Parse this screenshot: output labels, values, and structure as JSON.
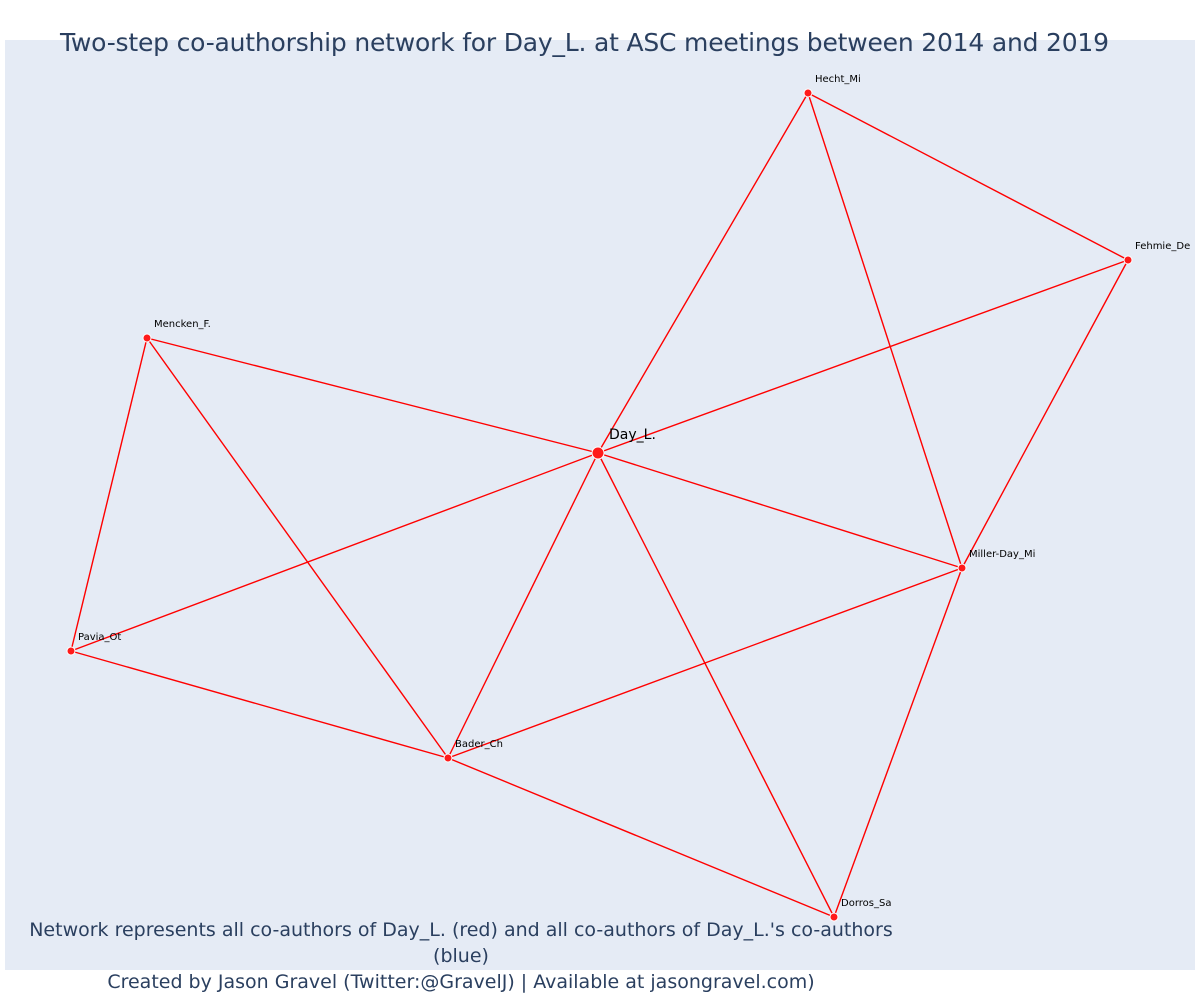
{
  "title": "Two-step co-authorship network for Day_L. at ASC meetings between 2014 and 2019",
  "footer": {
    "line1": "Network represents all co-authors of Day_L. (red) and all co-authors of Day_L.'s co-authors (blue)",
    "line2": "Created by Jason Gravel (Twitter:@GravelJ) | Available at jasongravel.com)"
  },
  "colors": {
    "background": "#e5ebf5",
    "edge": "#ff0000",
    "node": "#ff1a1a",
    "text": "#2a3f5f"
  },
  "network": {
    "center": "Day_L.",
    "nodes": [
      "Day_L.",
      "Hecht_Mi",
      "Fehmie_De",
      "Mencken_F.",
      "Miller-Day_Mi",
      "Pavia_Ot",
      "Bader_Ch",
      "Dorros_Sa"
    ],
    "edges": [
      [
        "Day_L.",
        "Hecht_Mi"
      ],
      [
        "Day_L.",
        "Fehmie_De"
      ],
      [
        "Day_L.",
        "Mencken_F."
      ],
      [
        "Day_L.",
        "Miller-Day_Mi"
      ],
      [
        "Day_L.",
        "Pavia_Ot"
      ],
      [
        "Day_L.",
        "Bader_Ch"
      ],
      [
        "Day_L.",
        "Dorros_Sa"
      ],
      [
        "Hecht_Mi",
        "Fehmie_De"
      ],
      [
        "Hecht_Mi",
        "Miller-Day_Mi"
      ],
      [
        "Fehmie_De",
        "Miller-Day_Mi"
      ],
      [
        "Mencken_F.",
        "Pavia_Ot"
      ],
      [
        "Mencken_F.",
        "Bader_Ch"
      ],
      [
        "Pavia_Ot",
        "Bader_Ch"
      ],
      [
        "Bader_Ch",
        "Miller-Day_Mi"
      ],
      [
        "Bader_Ch",
        "Dorros_Sa"
      ],
      [
        "Miller-Day_Mi",
        "Dorros_Sa"
      ]
    ]
  }
}
